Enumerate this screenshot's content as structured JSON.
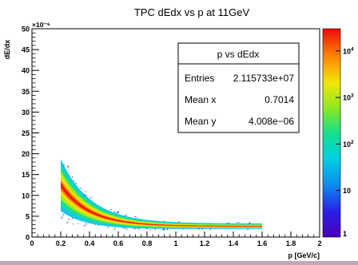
{
  "chart_data": {
    "type": "heatmap",
    "title": "TPC dEdx vs p at 11GeV",
    "xlabel": "p [GeV/c]",
    "ylabel": "dE/dx",
    "y_exponent": "×10⁻⁶",
    "xlim": [
      0,
      2
    ],
    "ylim": [
      0,
      50
    ],
    "x_ticks": [
      "0",
      "0.2",
      "0.4",
      "0.6",
      "0.8",
      "1",
      "1.2",
      "1.4",
      "1.6",
      "1.8",
      "2"
    ],
    "y_ticks": [
      "0",
      "5",
      "10",
      "15",
      "20",
      "25",
      "30",
      "35",
      "40",
      "45",
      "50"
    ],
    "z_scale": "log",
    "zlim": [
      1,
      30000
    ],
    "z_ticks": [
      {
        "base": "10",
        "exp": "",
        "value": 10
      },
      {
        "base": "10",
        "exp": "2",
        "value": 100
      },
      {
        "base": "10",
        "exp": "3",
        "value": 1000
      },
      {
        "base": "10",
        "exp": "4",
        "value": 10000
      }
    ],
    "z_min_label": "1",
    "band": {
      "x_start": 0.2,
      "x_end": 1.6,
      "center_at_start": 12.5,
      "center_at_end": 2.6,
      "top_at_start": 19.5,
      "bottom_at_start": 7.0
    },
    "stats": {
      "title": "p vs dEdx",
      "rows": [
        {
          "label": "Entries",
          "value": "2.115733e+07"
        },
        {
          "label": "Mean x",
          "value": "0.7014"
        },
        {
          "label": "Mean y",
          "value": "4.008e−06"
        }
      ]
    }
  }
}
